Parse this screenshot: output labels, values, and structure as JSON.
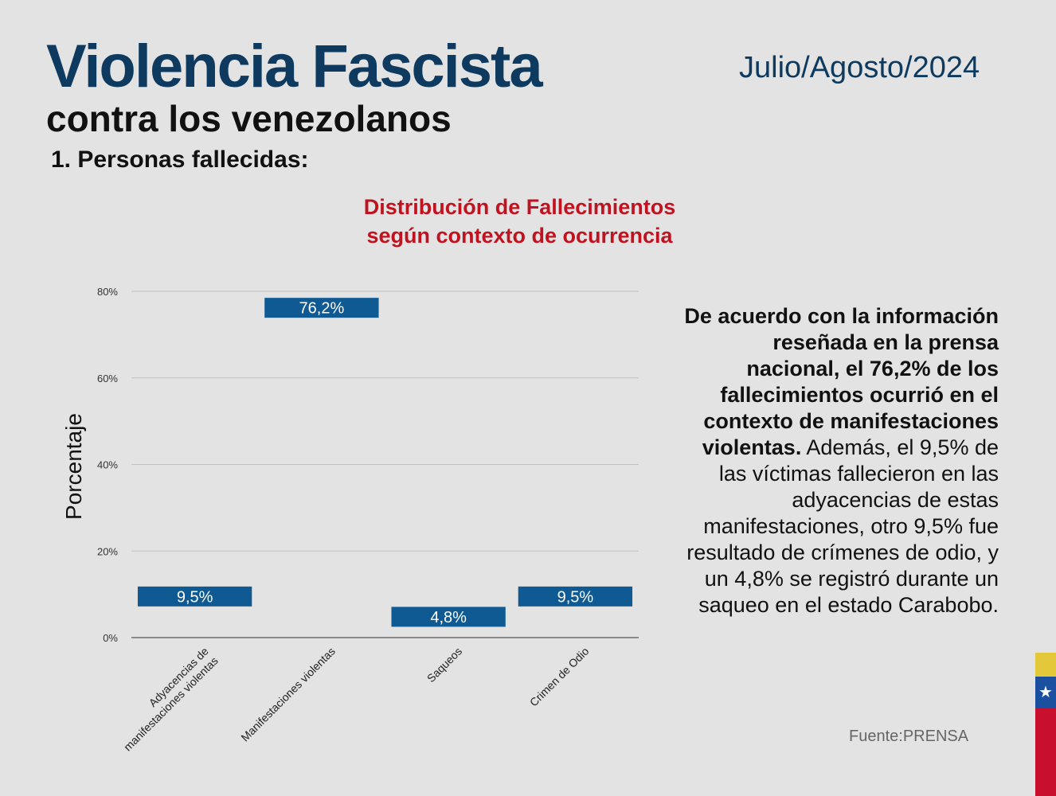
{
  "header": {
    "title": "Violencia Fascista",
    "subtitle": "contra los venezolanos",
    "date": "Julio/Agosto/2024",
    "section": "1. Personas fallecidas:"
  },
  "description": {
    "bold": "De acuerdo con la información reseñada en la prensa nacional, el 76,2% de los fallecimientos ocurrió en el contexto de manifestaciones violentas.",
    "normal": "Además, el 9,5% de las víctimas fallecieron en las adyacencias de estas manifestaciones, otro 9,5% fue resultado de crímenes de odio, y un 4,8% se registró durante un saqueo en el estado Carabobo."
  },
  "source": "Fuente:PRENSA",
  "colors": {
    "bar": "#0f5a92",
    "title_blue": "#0d3a5e",
    "chart_title_red": "#c1121f",
    "grid": "#c2c2c2"
  },
  "flag_icon": "star-icon",
  "chart_data": {
    "type": "bar",
    "title": [
      "Distribución de Fallecimientos",
      "según contexto de ocurrencia"
    ],
    "xlabel": "",
    "ylabel": "Porcentaje",
    "categories": [
      [
        "Adyacencias de",
        "manifestaciones violentas"
      ],
      [
        "Manifestaciones violentas"
      ],
      [
        "Saqueos"
      ],
      [
        "Crimen de Odio"
      ]
    ],
    "values": [
      9.5,
      76.2,
      4.8,
      9.5
    ],
    "labels": [
      "9,5%",
      "76,2%",
      "4,8%",
      "9,5%"
    ],
    "ylim": [
      0,
      80
    ],
    "yticks": [
      0,
      20,
      40,
      60,
      80
    ],
    "ytick_labels": [
      "0%",
      "20%",
      "40%",
      "60%",
      "80%"
    ],
    "grid": true
  }
}
